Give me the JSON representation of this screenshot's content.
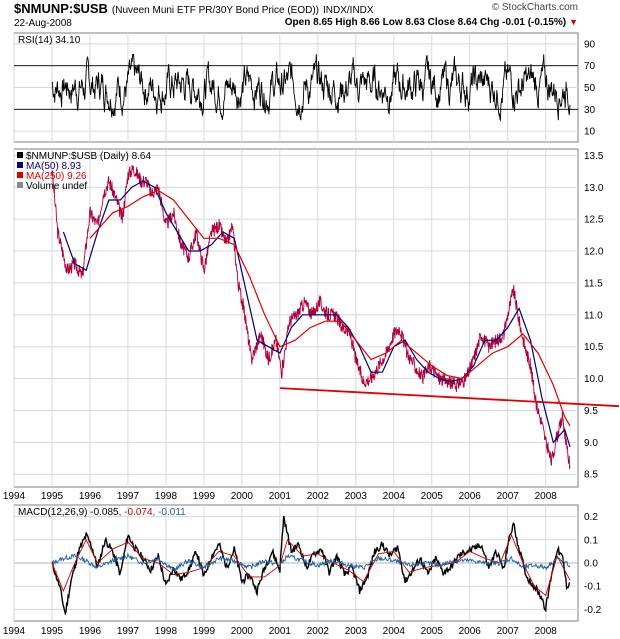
{
  "header": {
    "symbol": "$NMUNP:$USB",
    "description": "(Nuveen Muni ETF PR/30Y Bond Price (EOD))",
    "exchange": "INDX/INDX",
    "brand": "© StockCharts.com",
    "date": "22-Aug-2008",
    "open_label": "Open",
    "open": "8.65",
    "high_label": "High",
    "high": "8.66",
    "low_label": "Low",
    "low": "8.63",
    "close_label": "Close",
    "close": "8.64",
    "chg_label": "Chg",
    "chg": "-0.01 (-0.15%)"
  },
  "colors": {
    "price": "#b0003a",
    "ma50": "#000080",
    "ma250": "#e00000",
    "support": "#e00000",
    "macd": "#000000",
    "signal": "#cc0000",
    "histogram": "#1a5fa0",
    "grid": "#d8d8d8"
  },
  "chart_data": [
    {
      "type": "line",
      "panel": "RSI",
      "legend": "RSI(14) 34.10",
      "ylim": [
        0,
        100
      ],
      "y_ticks": [
        10,
        30,
        50,
        70,
        90
      ],
      "reference_lines": [
        30,
        70
      ],
      "last_value": 34.1,
      "range_typical": [
        20,
        85
      ]
    },
    {
      "type": "line",
      "panel": "price",
      "legend": [
        "$NMUNP:$USB (Daily) 8.64",
        "MA(50) 8.93",
        "MA(250) 9.26",
        "Volume undef"
      ],
      "ylim": [
        8.3,
        13.6
      ],
      "y_ticks": [
        8.5,
        9.0,
        9.5,
        10.0,
        10.5,
        11.0,
        11.5,
        12.0,
        12.5,
        13.0,
        13.5
      ],
      "x_ticks": [
        "1994",
        "1995",
        "1996",
        "1997",
        "1998",
        "1999",
        "2000",
        "2001",
        "2002",
        "2003",
        "2004",
        "2005",
        "2006",
        "2007",
        "2008"
      ],
      "series": [
        {
          "name": "$NMUNP:$USB (Daily) 8.64",
          "x": [
            1995.0,
            1995.15,
            1995.4,
            1995.6,
            1995.8,
            1996.0,
            1996.2,
            1996.35,
            1996.5,
            1996.7,
            1996.85,
            1997.0,
            1997.15,
            1997.35,
            1997.5,
            1997.6,
            1997.8,
            1998.0,
            1998.2,
            1998.4,
            1998.6,
            1998.8,
            1999.0,
            1999.2,
            1999.4,
            1999.6,
            1999.75,
            1999.9,
            2000.05,
            2000.25,
            2000.5,
            2000.7,
            2000.9,
            2001.05,
            2001.25,
            2001.45,
            2001.65,
            2001.85,
            2002.05,
            2002.25,
            2002.45,
            2002.65,
            2002.85,
            2003.0,
            2003.2,
            2003.4,
            2003.6,
            2003.8,
            2004.0,
            2004.15,
            2004.35,
            2004.55,
            2004.75,
            2004.95,
            2005.2,
            2005.45,
            2005.65,
            2005.9,
            2006.1,
            2006.3,
            2006.5,
            2006.7,
            2006.9,
            2007.0,
            2007.15,
            2007.3,
            2007.45,
            2007.6,
            2007.75,
            2007.9,
            2008.0,
            2008.15,
            2008.3,
            2008.45,
            2008.55,
            2008.64
          ],
          "values": [
            13.3,
            12.3,
            11.7,
            11.8,
            11.6,
            12.6,
            12.4,
            12.9,
            13.1,
            12.8,
            12.5,
            13.2,
            13.3,
            13.1,
            13.1,
            12.9,
            13.0,
            12.4,
            12.6,
            12.1,
            11.9,
            12.3,
            11.7,
            12.3,
            12.4,
            12.1,
            12.4,
            11.5,
            11.1,
            10.3,
            10.7,
            10.3,
            10.6,
            10.1,
            10.9,
            11.0,
            11.2,
            11.0,
            11.2,
            11.0,
            11.0,
            10.8,
            10.7,
            10.3,
            9.95,
            10.0,
            10.2,
            10.4,
            10.7,
            10.8,
            10.4,
            10.2,
            10.0,
            10.2,
            10.0,
            9.95,
            9.9,
            10.0,
            10.3,
            10.7,
            10.5,
            10.6,
            10.7,
            11.0,
            11.4,
            10.9,
            10.5,
            10.2,
            9.6,
            9.3,
            9.0,
            8.7,
            9.1,
            9.4,
            8.9,
            8.64
          ]
        },
        {
          "name": "MA(50) 8.93",
          "x": [
            1995.3,
            1995.6,
            1995.9,
            1996.2,
            1996.5,
            1996.8,
            1997.1,
            1997.4,
            1997.7,
            1998.0,
            1998.3,
            1998.6,
            1998.9,
            1999.2,
            1999.5,
            1999.8,
            2000.1,
            2000.4,
            2000.7,
            2001.0,
            2001.3,
            2001.6,
            2001.9,
            2002.2,
            2002.5,
            2002.8,
            2003.1,
            2003.4,
            2003.7,
            2004.0,
            2004.3,
            2004.6,
            2004.9,
            2005.2,
            2005.5,
            2005.8,
            2006.1,
            2006.4,
            2006.7,
            2007.0,
            2007.3,
            2007.6,
            2007.9,
            2008.2,
            2008.5,
            2008.64
          ],
          "values": [
            12.3,
            11.8,
            11.7,
            12.3,
            12.8,
            12.8,
            13.0,
            13.1,
            13.0,
            12.6,
            12.3,
            12.0,
            12.0,
            12.1,
            12.3,
            12.2,
            11.4,
            10.6,
            10.5,
            10.4,
            10.8,
            11.0,
            11.0,
            11.0,
            11.0,
            10.8,
            10.5,
            10.1,
            10.1,
            10.5,
            10.6,
            10.3,
            10.1,
            10.0,
            9.95,
            10.0,
            10.2,
            10.6,
            10.6,
            10.8,
            11.1,
            10.6,
            9.7,
            9.0,
            9.2,
            8.93
          ]
        },
        {
          "name": "MA(250) 9.26",
          "x": [
            1996.0,
            1996.3,
            1996.6,
            1997.0,
            1997.4,
            1997.8,
            1998.2,
            1998.6,
            1999.0,
            1999.4,
            1999.8,
            2000.2,
            2000.6,
            2001.0,
            2001.4,
            2001.8,
            2002.2,
            2002.6,
            2003.0,
            2003.4,
            2003.8,
            2004.2,
            2004.6,
            2005.0,
            2005.4,
            2005.8,
            2006.2,
            2006.6,
            2007.0,
            2007.4,
            2007.8,
            2008.2,
            2008.5,
            2008.64
          ],
          "values": [
            12.2,
            12.4,
            12.6,
            12.7,
            12.85,
            12.95,
            12.8,
            12.5,
            12.2,
            12.2,
            12.1,
            11.6,
            11.0,
            10.5,
            10.6,
            10.8,
            10.9,
            10.9,
            10.6,
            10.3,
            10.4,
            10.6,
            10.4,
            10.2,
            10.05,
            10.0,
            10.2,
            10.4,
            10.5,
            10.7,
            10.4,
            9.9,
            9.4,
            9.26
          ]
        }
      ],
      "support_line": {
        "x": [
          2001.0,
          2008.9
        ],
        "values": [
          9.85,
          9.6
        ],
        "extends_right": true
      }
    },
    {
      "type": "line",
      "panel": "MACD",
      "legend_parts": [
        "MACD(12,26,9)",
        "-0.085",
        "-0.074",
        "-0.011"
      ],
      "ylim": [
        -0.25,
        0.25
      ],
      "y_ticks": [
        -0.2,
        -0.1,
        0.0,
        0.1,
        0.2
      ],
      "x_ticks": [
        "1994",
        "1995",
        "1996",
        "1997",
        "1998",
        "1999",
        "2000",
        "2001",
        "2002",
        "2003",
        "2004",
        "2005",
        "2006",
        "2007",
        "2008"
      ],
      "series": [
        {
          "name": "MACD(12,26,9)",
          "x": [
            1995.0,
            1995.2,
            1995.35,
            1995.5,
            1995.7,
            1995.9,
            1996.05,
            1996.2,
            1996.4,
            1996.6,
            1996.8,
            1997.0,
            1997.2,
            1997.4,
            1997.6,
            1997.8,
            1998.0,
            1998.2,
            1998.4,
            1998.6,
            1998.8,
            1999.0,
            1999.2,
            1999.4,
            1999.6,
            1999.8,
            2000.0,
            2000.2,
            2000.4,
            2000.6,
            2000.8,
            2001.0,
            2001.1,
            2001.3,
            2001.5,
            2001.7,
            2001.9,
            2002.1,
            2002.3,
            2002.5,
            2002.7,
            2002.9,
            2003.1,
            2003.3,
            2003.5,
            2003.7,
            2003.9,
            2004.1,
            2004.3,
            2004.5,
            2004.7,
            2004.9,
            2005.1,
            2005.3,
            2005.5,
            2005.7,
            2005.9,
            2006.1,
            2006.3,
            2006.5,
            2006.7,
            2006.9,
            2007.0,
            2007.15,
            2007.3,
            2007.5,
            2007.7,
            2007.9,
            2008.0,
            2008.15,
            2008.3,
            2008.45,
            2008.55,
            2008.64
          ],
          "values": [
            0.0,
            -0.1,
            -0.22,
            -0.08,
            0.05,
            0.12,
            0.07,
            -0.02,
            0.1,
            0.05,
            -0.05,
            0.12,
            0.06,
            0.02,
            -0.03,
            0.03,
            -0.1,
            -0.02,
            -0.07,
            -0.03,
            0.05,
            -0.06,
            0.03,
            0.08,
            -0.02,
            0.06,
            -0.08,
            -0.05,
            -0.12,
            -0.02,
            0.05,
            -0.03,
            0.2,
            0.05,
            0.08,
            -0.02,
            0.04,
            0.06,
            -0.04,
            0.03,
            -0.05,
            -0.02,
            -0.12,
            -0.06,
            0.05,
            0.08,
            0.03,
            0.07,
            -0.08,
            -0.03,
            0.02,
            -0.05,
            0.02,
            -0.04,
            -0.02,
            0.03,
            0.05,
            0.06,
            0.08,
            -0.02,
            0.05,
            -0.03,
            0.08,
            0.17,
            0.06,
            -0.06,
            -0.1,
            -0.15,
            -0.2,
            -0.05,
            0.06,
            0.02,
            -0.1,
            -0.085
          ]
        },
        {
          "name": "signal",
          "x": [
            1995.0,
            1995.3,
            1995.6,
            1995.9,
            1996.2,
            1996.6,
            1997.0,
            1997.4,
            1997.8,
            1998.2,
            1998.6,
            1999.0,
            1999.4,
            1999.8,
            2000.2,
            2000.6,
            2001.0,
            2001.2,
            2001.6,
            2002.0,
            2002.4,
            2002.8,
            2003.2,
            2003.6,
            2004.0,
            2004.4,
            2004.8,
            2005.2,
            2005.6,
            2006.0,
            2006.4,
            2006.8,
            2007.1,
            2007.4,
            2007.7,
            2008.0,
            2008.3,
            2008.64
          ],
          "values": [
            0.0,
            -0.12,
            0.0,
            0.1,
            0.0,
            0.06,
            0.09,
            0.02,
            0.0,
            -0.05,
            -0.04,
            -0.02,
            0.05,
            0.03,
            -0.06,
            -0.06,
            -0.01,
            0.1,
            0.03,
            0.04,
            0.0,
            -0.03,
            -0.08,
            0.04,
            0.05,
            -0.04,
            -0.02,
            -0.01,
            0.0,
            0.05,
            0.02,
            0.0,
            0.12,
            0.0,
            -0.1,
            -0.14,
            0.03,
            -0.074
          ]
        },
        {
          "name": "histogram",
          "x": [
            1995.0,
            1995.3,
            1995.6,
            1995.9,
            1996.2,
            1996.6,
            1997.0,
            1997.4,
            1997.8,
            1998.2,
            1998.6,
            1999.0,
            1999.4,
            1999.8,
            2000.2,
            2000.6,
            2001.0,
            2001.2,
            2001.6,
            2002.0,
            2002.4,
            2002.8,
            2003.2,
            2003.6,
            2004.0,
            2004.4,
            2004.8,
            2005.2,
            2005.6,
            2006.0,
            2006.4,
            2006.8,
            2007.1,
            2007.4,
            2007.7,
            2008.0,
            2008.3,
            2008.64
          ],
          "values": [
            0.0,
            0.02,
            0.03,
            0.01,
            -0.02,
            0.01,
            0.03,
            0.0,
            0.02,
            -0.03,
            0.01,
            -0.02,
            0.02,
            0.01,
            -0.02,
            0.01,
            -0.01,
            0.03,
            0.01,
            -0.01,
            0.01,
            -0.01,
            -0.02,
            0.02,
            0.01,
            -0.01,
            0.0,
            -0.01,
            0.01,
            0.01,
            0.0,
            0.0,
            0.02,
            -0.02,
            -0.01,
            -0.02,
            0.02,
            -0.011
          ]
        }
      ]
    }
  ]
}
